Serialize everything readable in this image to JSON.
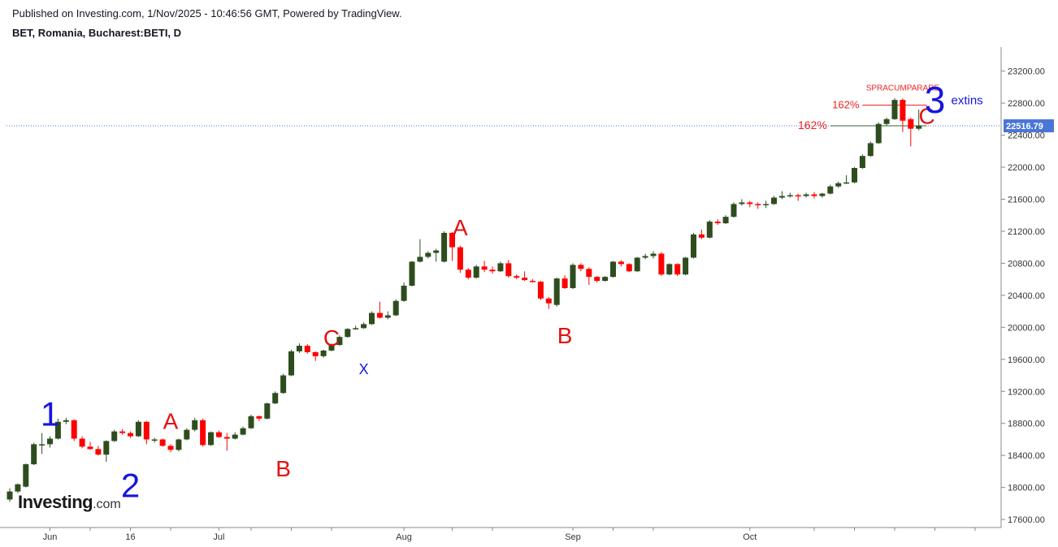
{
  "header": {
    "published": "Published on Investing.com, 1/Nov/2025 - 10:46:56 GMT, Powered by TradingView.",
    "symbol": "BET, Romania, Bucharest:BETI, D"
  },
  "logo": {
    "main": "Investing",
    "suffix": ".com"
  },
  "colors": {
    "up": "#2e4d1f",
    "down": "#ff0000",
    "last_price_line": "#4a76d8",
    "wave_blue": "#1515e0",
    "wave_red": "#e61010"
  },
  "chart_data": {
    "type": "candlestick",
    "x_tick_labels": [
      {
        "date": "2025-06-02",
        "label": "Jun"
      },
      {
        "date": "2025-06-16",
        "label": "16"
      },
      {
        "date": "2025-07-01",
        "label": "Jul"
      },
      {
        "date": "2025-08-01",
        "label": "Aug"
      },
      {
        "date": "2025-09-01",
        "label": "Sep"
      },
      {
        "date": "2025-10-01",
        "label": "Oct"
      }
    ],
    "ylim": [
      17500,
      23500
    ],
    "y_ticks": [
      "17600.00",
      "18000.00",
      "18400.00",
      "18800.00",
      "19200.00",
      "19600.00",
      "20000.00",
      "20400.00",
      "20800.00",
      "21200.00",
      "21600.00",
      "22000.00",
      "22400.00",
      "22800.00",
      "23200.00"
    ],
    "last_price": 22516.79,
    "last_price_label": "22516.79",
    "candles": [
      {
        "date": "2025-05-26",
        "o": 17850,
        "h": 17990,
        "l": 17820,
        "c": 17950
      },
      {
        "date": "2025-05-27",
        "o": 17950,
        "h": 18050,
        "l": 17930,
        "c": 18040
      },
      {
        "date": "2025-05-28",
        "o": 18010,
        "h": 18300,
        "l": 18000,
        "c": 18290
      },
      {
        "date": "2025-05-29",
        "o": 18290,
        "h": 18560,
        "l": 18280,
        "c": 18540
      },
      {
        "date": "2025-05-30",
        "o": 18540,
        "h": 18680,
        "l": 18420,
        "c": 18540
      },
      {
        "date": "2025-06-02",
        "o": 18540,
        "h": 18640,
        "l": 18500,
        "c": 18610
      },
      {
        "date": "2025-06-03",
        "o": 18610,
        "h": 18860,
        "l": 18600,
        "c": 18820
      },
      {
        "date": "2025-06-04",
        "o": 18820,
        "h": 18870,
        "l": 18790,
        "c": 18840
      },
      {
        "date": "2025-06-05",
        "o": 18840,
        "h": 18850,
        "l": 18580,
        "c": 18610
      },
      {
        "date": "2025-06-06",
        "o": 18610,
        "h": 18640,
        "l": 18490,
        "c": 18510
      },
      {
        "date": "2025-06-09",
        "o": 18510,
        "h": 18570,
        "l": 18470,
        "c": 18480
      },
      {
        "date": "2025-06-10",
        "o": 18480,
        "h": 18520,
        "l": 18400,
        "c": 18410
      },
      {
        "date": "2025-06-11",
        "o": 18410,
        "h": 18590,
        "l": 18320,
        "c": 18580
      },
      {
        "date": "2025-06-12",
        "o": 18580,
        "h": 18720,
        "l": 18570,
        "c": 18700
      },
      {
        "date": "2025-06-13",
        "o": 18700,
        "h": 18730,
        "l": 18660,
        "c": 18680
      },
      {
        "date": "2025-06-16",
        "o": 18680,
        "h": 18700,
        "l": 18620,
        "c": 18640
      },
      {
        "date": "2025-06-17",
        "o": 18640,
        "h": 18840,
        "l": 18630,
        "c": 18820
      },
      {
        "date": "2025-06-18",
        "o": 18820,
        "h": 18830,
        "l": 18540,
        "c": 18600
      },
      {
        "date": "2025-06-19",
        "o": 18600,
        "h": 18620,
        "l": 18560,
        "c": 18600
      },
      {
        "date": "2025-06-20",
        "o": 18600,
        "h": 18610,
        "l": 18510,
        "c": 18520
      },
      {
        "date": "2025-06-23",
        "o": 18520,
        "h": 18540,
        "l": 18440,
        "c": 18470
      },
      {
        "date": "2025-06-24",
        "o": 18470,
        "h": 18610,
        "l": 18450,
        "c": 18600
      },
      {
        "date": "2025-06-25",
        "o": 18600,
        "h": 18740,
        "l": 18590,
        "c": 18720
      },
      {
        "date": "2025-06-26",
        "o": 18720,
        "h": 18870,
        "l": 18700,
        "c": 18840
      },
      {
        "date": "2025-06-27",
        "o": 18840,
        "h": 18860,
        "l": 18510,
        "c": 18530
      },
      {
        "date": "2025-06-30",
        "o": 18530,
        "h": 18700,
        "l": 18520,
        "c": 18690
      },
      {
        "date": "2025-07-01",
        "o": 18690,
        "h": 18710,
        "l": 18620,
        "c": 18630
      },
      {
        "date": "2025-07-02",
        "o": 18630,
        "h": 18680,
        "l": 18460,
        "c": 18610
      },
      {
        "date": "2025-07-03",
        "o": 18610,
        "h": 18690,
        "l": 18600,
        "c": 18660
      },
      {
        "date": "2025-07-04",
        "o": 18660,
        "h": 18760,
        "l": 18650,
        "c": 18740
      },
      {
        "date": "2025-07-07",
        "o": 18740,
        "h": 18910,
        "l": 18730,
        "c": 18890
      },
      {
        "date": "2025-07-08",
        "o": 18890,
        "h": 18900,
        "l": 18830,
        "c": 18860
      },
      {
        "date": "2025-07-09",
        "o": 18860,
        "h": 19060,
        "l": 18850,
        "c": 19050
      },
      {
        "date": "2025-07-10",
        "o": 19050,
        "h": 19200,
        "l": 19040,
        "c": 19180
      },
      {
        "date": "2025-07-11",
        "o": 19180,
        "h": 19420,
        "l": 19170,
        "c": 19400
      },
      {
        "date": "2025-07-14",
        "o": 19400,
        "h": 19720,
        "l": 19390,
        "c": 19700
      },
      {
        "date": "2025-07-15",
        "o": 19700,
        "h": 19800,
        "l": 19680,
        "c": 19770
      },
      {
        "date": "2025-07-16",
        "o": 19770,
        "h": 19790,
        "l": 19670,
        "c": 19690
      },
      {
        "date": "2025-07-17",
        "o": 19690,
        "h": 19700,
        "l": 19580,
        "c": 19640
      },
      {
        "date": "2025-07-18",
        "o": 19640,
        "h": 19720,
        "l": 19620,
        "c": 19710
      },
      {
        "date": "2025-07-21",
        "o": 19710,
        "h": 19800,
        "l": 19700,
        "c": 19780
      },
      {
        "date": "2025-07-22",
        "o": 19780,
        "h": 19900,
        "l": 19770,
        "c": 19880
      },
      {
        "date": "2025-07-23",
        "o": 19880,
        "h": 19990,
        "l": 19870,
        "c": 19980
      },
      {
        "date": "2025-07-24",
        "o": 19980,
        "h": 20020,
        "l": 19970,
        "c": 19990
      },
      {
        "date": "2025-07-25",
        "o": 19990,
        "h": 20060,
        "l": 19980,
        "c": 20040
      },
      {
        "date": "2025-07-28",
        "o": 20040,
        "h": 20200,
        "l": 20030,
        "c": 20180
      },
      {
        "date": "2025-07-29",
        "o": 20180,
        "h": 20320,
        "l": 20110,
        "c": 20120
      },
      {
        "date": "2025-07-30",
        "o": 20120,
        "h": 20200,
        "l": 20100,
        "c": 20150
      },
      {
        "date": "2025-07-31",
        "o": 20150,
        "h": 20350,
        "l": 20140,
        "c": 20330
      },
      {
        "date": "2025-08-01",
        "o": 20330,
        "h": 20560,
        "l": 20320,
        "c": 20520
      },
      {
        "date": "2025-08-04",
        "o": 20520,
        "h": 20830,
        "l": 20510,
        "c": 20820
      },
      {
        "date": "2025-08-05",
        "o": 20820,
        "h": 21100,
        "l": 20810,
        "c": 20880
      },
      {
        "date": "2025-08-06",
        "o": 20880,
        "h": 20950,
        "l": 20860,
        "c": 20930
      },
      {
        "date": "2025-08-07",
        "o": 20930,
        "h": 20980,
        "l": 20820,
        "c": 20960
      },
      {
        "date": "2025-08-08",
        "o": 20820,
        "h": 21200,
        "l": 20810,
        "c": 21180
      },
      {
        "date": "2025-08-11",
        "o": 21180,
        "h": 21190,
        "l": 20830,
        "c": 21000
      },
      {
        "date": "2025-08-12",
        "o": 21000,
        "h": 21020,
        "l": 20680,
        "c": 20720
      },
      {
        "date": "2025-08-13",
        "o": 20720,
        "h": 20740,
        "l": 20600,
        "c": 20620
      },
      {
        "date": "2025-08-14",
        "o": 20620,
        "h": 20780,
        "l": 20610,
        "c": 20760
      },
      {
        "date": "2025-08-15",
        "o": 20760,
        "h": 20830,
        "l": 20690,
        "c": 20720
      },
      {
        "date": "2025-08-18",
        "o": 20720,
        "h": 20760,
        "l": 20670,
        "c": 20700
      },
      {
        "date": "2025-08-19",
        "o": 20700,
        "h": 20820,
        "l": 20690,
        "c": 20800
      },
      {
        "date": "2025-08-20",
        "o": 20800,
        "h": 20840,
        "l": 20620,
        "c": 20640
      },
      {
        "date": "2025-08-21",
        "o": 20640,
        "h": 20660,
        "l": 20600,
        "c": 20620
      },
      {
        "date": "2025-08-22",
        "o": 20620,
        "h": 20700,
        "l": 20580,
        "c": 20590
      },
      {
        "date": "2025-08-25",
        "o": 20580,
        "h": 20600,
        "l": 20560,
        "c": 20570
      },
      {
        "date": "2025-08-26",
        "o": 20570,
        "h": 20580,
        "l": 20340,
        "c": 20360
      },
      {
        "date": "2025-08-27",
        "o": 20360,
        "h": 20380,
        "l": 20230,
        "c": 20300
      },
      {
        "date": "2025-08-28",
        "o": 20280,
        "h": 20620,
        "l": 20260,
        "c": 20610
      },
      {
        "date": "2025-08-29",
        "o": 20610,
        "h": 20650,
        "l": 20480,
        "c": 20490
      },
      {
        "date": "2025-09-01",
        "o": 20490,
        "h": 20800,
        "l": 20480,
        "c": 20780
      },
      {
        "date": "2025-09-02",
        "o": 20780,
        "h": 20800,
        "l": 20700,
        "c": 20730
      },
      {
        "date": "2025-09-03",
        "o": 20730,
        "h": 20750,
        "l": 20530,
        "c": 20630
      },
      {
        "date": "2025-09-04",
        "o": 20630,
        "h": 20640,
        "l": 20560,
        "c": 20580
      },
      {
        "date": "2025-09-05",
        "o": 20580,
        "h": 20640,
        "l": 20570,
        "c": 20630
      },
      {
        "date": "2025-09-08",
        "o": 20630,
        "h": 20830,
        "l": 20620,
        "c": 20820
      },
      {
        "date": "2025-09-09",
        "o": 20820,
        "h": 20840,
        "l": 20760,
        "c": 20790
      },
      {
        "date": "2025-09-10",
        "o": 20790,
        "h": 20800,
        "l": 20690,
        "c": 20700
      },
      {
        "date": "2025-09-11",
        "o": 20700,
        "h": 20880,
        "l": 20690,
        "c": 20870
      },
      {
        "date": "2025-09-12",
        "o": 20870,
        "h": 20920,
        "l": 20850,
        "c": 20890
      },
      {
        "date": "2025-09-15",
        "o": 20890,
        "h": 20950,
        "l": 20860,
        "c": 20920
      },
      {
        "date": "2025-09-16",
        "o": 20920,
        "h": 20940,
        "l": 20640,
        "c": 20660
      },
      {
        "date": "2025-09-17",
        "o": 20660,
        "h": 20800,
        "l": 20650,
        "c": 20790
      },
      {
        "date": "2025-09-18",
        "o": 20790,
        "h": 20800,
        "l": 20640,
        "c": 20660
      },
      {
        "date": "2025-09-19",
        "o": 20660,
        "h": 20880,
        "l": 20650,
        "c": 20870
      },
      {
        "date": "2025-09-22",
        "o": 20870,
        "h": 21180,
        "l": 20860,
        "c": 21160
      },
      {
        "date": "2025-09-23",
        "o": 21160,
        "h": 21220,
        "l": 21100,
        "c": 21120
      },
      {
        "date": "2025-09-24",
        "o": 21120,
        "h": 21340,
        "l": 21110,
        "c": 21320
      },
      {
        "date": "2025-09-25",
        "o": 21320,
        "h": 21350,
        "l": 21280,
        "c": 21300
      },
      {
        "date": "2025-09-26",
        "o": 21300,
        "h": 21400,
        "l": 21290,
        "c": 21380
      },
      {
        "date": "2025-09-29",
        "o": 21380,
        "h": 21560,
        "l": 21370,
        "c": 21540
      },
      {
        "date": "2025-09-30",
        "o": 21540,
        "h": 21600,
        "l": 21520,
        "c": 21560
      },
      {
        "date": "2025-10-01",
        "o": 21560,
        "h": 21580,
        "l": 21500,
        "c": 21540
      },
      {
        "date": "2025-10-02",
        "o": 21540,
        "h": 21560,
        "l": 21480,
        "c": 21530
      },
      {
        "date": "2025-10-03",
        "o": 21530,
        "h": 21580,
        "l": 21490,
        "c": 21540
      },
      {
        "date": "2025-10-06",
        "o": 21540,
        "h": 21640,
        "l": 21530,
        "c": 21620
      },
      {
        "date": "2025-10-07",
        "o": 21620,
        "h": 21700,
        "l": 21600,
        "c": 21640
      },
      {
        "date": "2025-10-08",
        "o": 21640,
        "h": 21680,
        "l": 21620,
        "c": 21650
      },
      {
        "date": "2025-10-09",
        "o": 21650,
        "h": 21670,
        "l": 21580,
        "c": 21640
      },
      {
        "date": "2025-10-10",
        "o": 21640,
        "h": 21680,
        "l": 21620,
        "c": 21660
      },
      {
        "date": "2025-10-13",
        "o": 21660,
        "h": 21690,
        "l": 21610,
        "c": 21640
      },
      {
        "date": "2025-10-14",
        "o": 21640,
        "h": 21680,
        "l": 21620,
        "c": 21670
      },
      {
        "date": "2025-10-15",
        "o": 21670,
        "h": 21780,
        "l": 21660,
        "c": 21760
      },
      {
        "date": "2025-10-16",
        "o": 21760,
        "h": 21820,
        "l": 21740,
        "c": 21800
      },
      {
        "date": "2025-10-17",
        "o": 21800,
        "h": 21900,
        "l": 21790,
        "c": 21810
      },
      {
        "date": "2025-10-20",
        "o": 21810,
        "h": 22000,
        "l": 21800,
        "c": 21990
      },
      {
        "date": "2025-10-21",
        "o": 21990,
        "h": 22160,
        "l": 21980,
        "c": 22140
      },
      {
        "date": "2025-10-22",
        "o": 22140,
        "h": 22320,
        "l": 22130,
        "c": 22300
      },
      {
        "date": "2025-10-23",
        "o": 22300,
        "h": 22560,
        "l": 22290,
        "c": 22540
      },
      {
        "date": "2025-10-24",
        "o": 22540,
        "h": 22620,
        "l": 22520,
        "c": 22600
      },
      {
        "date": "2025-10-27",
        "o": 22600,
        "h": 22860,
        "l": 22590,
        "c": 22840
      },
      {
        "date": "2025-10-28",
        "o": 22840,
        "h": 22860,
        "l": 22440,
        "c": 22580
      },
      {
        "date": "2025-10-29",
        "o": 22600,
        "h": 22620,
        "l": 22260,
        "c": 22480
      },
      {
        "date": "2025-10-30",
        "o": 22480,
        "h": 22720,
        "l": 22460,
        "c": 22516.79
      }
    ],
    "annotations": [
      {
        "text": "1",
        "color": "blue",
        "size": "large",
        "date": "2025-06-02",
        "price": 18920
      },
      {
        "text": "2",
        "color": "blue",
        "size": "large",
        "date": "2025-06-16",
        "price": 18030
      },
      {
        "text": "A",
        "color": "red",
        "size": "medium",
        "date": "2025-06-23",
        "price": 18830
      },
      {
        "text": "B",
        "color": "red",
        "size": "medium",
        "date": "2025-07-11",
        "price": 18240
      },
      {
        "text": "C",
        "color": "red",
        "size": "medium",
        "date": "2025-07-21",
        "price": 19870
      },
      {
        "text": "X",
        "color": "blue",
        "size": "small",
        "date": "2025-07-25",
        "price": 19480
      },
      {
        "text": "A",
        "color": "red",
        "size": "medium",
        "date": "2025-08-12",
        "price": 21250
      },
      {
        "text": "B",
        "color": "red",
        "size": "medium",
        "date": "2025-08-29",
        "price": 19900
      },
      {
        "text": "C",
        "color": "red",
        "size": "medium",
        "date": "2025-10-31",
        "price": 22640
      },
      {
        "text": "3",
        "color": "blue",
        "size": "xlarge",
        "date": "2025-11-03",
        "price": 22840
      },
      {
        "text": "extins",
        "color": "blue",
        "size": "small",
        "date": "2025-11-08",
        "price": 22840
      }
    ],
    "fib_lines": [
      {
        "label": "162%",
        "price": 22775,
        "from": "2025-10-21",
        "to": "2025-10-31",
        "color": "#ee2222"
      },
      {
        "label": "162%",
        "price": 22516.79,
        "from": "2025-10-15",
        "to": "2025-11-01",
        "color": "#336633"
      }
    ],
    "note": {
      "text": "SPRACUMPARARE",
      "date": "2025-10-28",
      "price": 22960,
      "color": "#ee2222"
    }
  }
}
